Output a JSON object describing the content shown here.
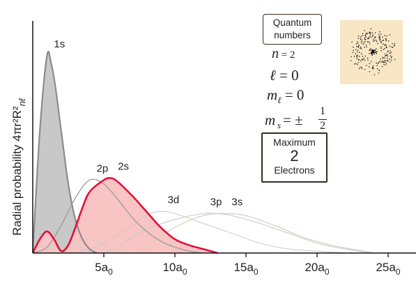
{
  "chart_data": {
    "type": "line",
    "xlabel": "",
    "ylabel": "Radial probability 4πr²R²",
    "ylabel_subscript": "nℓ",
    "xlim": [
      0,
      25
    ],
    "xticks": [
      {
        "value": 5,
        "label": "5a",
        "sub": "0"
      },
      {
        "value": 10,
        "label": "10a",
        "sub": "0"
      },
      {
        "value": 15,
        "label": "15a",
        "sub": "0"
      },
      {
        "value": 20,
        "label": "20a",
        "sub": "0"
      },
      {
        "value": 25,
        "label": "25a",
        "sub": "0"
      }
    ],
    "series": [
      {
        "name": "1s",
        "color": "#8c8c8c",
        "fill": "#c8c8c8",
        "x": [
          0,
          0.5,
          1.0,
          1.3,
          1.6,
          2.0,
          2.5,
          3.0,
          3.5,
          4.0,
          4.5
        ],
        "values": [
          0,
          0.62,
          1.0,
          0.96,
          0.84,
          0.62,
          0.35,
          0.17,
          0.07,
          0.02,
          0.0
        ]
      },
      {
        "name": "2p",
        "color": "#9a9a9a",
        "x": [
          0,
          1,
          2,
          3,
          4,
          5,
          6,
          7,
          8,
          9,
          10,
          11,
          12
        ],
        "values": [
          0,
          0.03,
          0.14,
          0.28,
          0.37,
          0.35,
          0.27,
          0.18,
          0.11,
          0.06,
          0.03,
          0.01,
          0
        ]
      },
      {
        "name": "2s",
        "color": "#e3103c",
        "fill": "#f9c4c4",
        "x": [
          0,
          0.5,
          1.0,
          1.5,
          2.0,
          2.5,
          3.0,
          3.5,
          4.0,
          5.0,
          5.5,
          6.0,
          7.0,
          8.0,
          9.0,
          10.0,
          11.0,
          12.0,
          13.0
        ],
        "values": [
          0,
          0.07,
          0.11,
          0.07,
          0.01,
          0.04,
          0.13,
          0.23,
          0.31,
          0.37,
          0.38,
          0.36,
          0.29,
          0.21,
          0.13,
          0.07,
          0.04,
          0.02,
          0.0
        ]
      },
      {
        "name": "3d",
        "color": "#c8c8c8",
        "x": [
          0,
          2,
          4,
          6,
          8,
          9,
          10,
          12,
          14,
          16,
          18,
          20,
          22
        ],
        "values": [
          0,
          0.0,
          0.02,
          0.09,
          0.19,
          0.21,
          0.2,
          0.15,
          0.1,
          0.05,
          0.02,
          0.01,
          0
        ]
      },
      {
        "name": "3p",
        "color": "#c8c8c8",
        "x": [
          0,
          1,
          2,
          3,
          4,
          5,
          6,
          7,
          8,
          10,
          12,
          13,
          14,
          16,
          18,
          20,
          22,
          24
        ],
        "values": [
          0,
          0.02,
          0.05,
          0.04,
          0.01,
          0.0,
          0.03,
          0.08,
          0.12,
          0.17,
          0.2,
          0.2,
          0.19,
          0.15,
          0.1,
          0.05,
          0.02,
          0
        ]
      },
      {
        "name": "3s",
        "color": "#d8d0bc",
        "x": [
          0,
          0.5,
          1.0,
          1.5,
          2.0,
          3.0,
          4.0,
          5.0,
          6.0,
          7.0,
          8.0,
          10.0,
          12.0,
          13.5,
          15.0,
          17.0,
          19.0,
          21.0,
          24.0
        ],
        "values": [
          0,
          0.03,
          0.04,
          0.02,
          0.0,
          0.05,
          0.07,
          0.04,
          0.01,
          0.0,
          0.03,
          0.13,
          0.19,
          0.2,
          0.19,
          0.14,
          0.08,
          0.04,
          0
        ]
      }
    ]
  },
  "quantum_box": {
    "line1": "Quantum",
    "line2": "numbers"
  },
  "quantum_numbers": {
    "n": {
      "sym": "n",
      "eq": " = 2"
    },
    "l": {
      "sym": "ℓ",
      "eq": " = 0"
    },
    "ml": {
      "sym": "m",
      "sub": "ℓ",
      "eq": " = 0"
    },
    "ms": {
      "sym": "m",
      "sub": "s",
      "eq": " = ±",
      "num": "1",
      "den": "2"
    }
  },
  "max_box": {
    "line1": "Maximum",
    "line2": "2",
    "line3": "Electrons"
  },
  "orbital_image": {
    "name": "2s-orbital-dot-density",
    "background": "#f8e6c4",
    "dot_color": "#1a1a1a"
  }
}
